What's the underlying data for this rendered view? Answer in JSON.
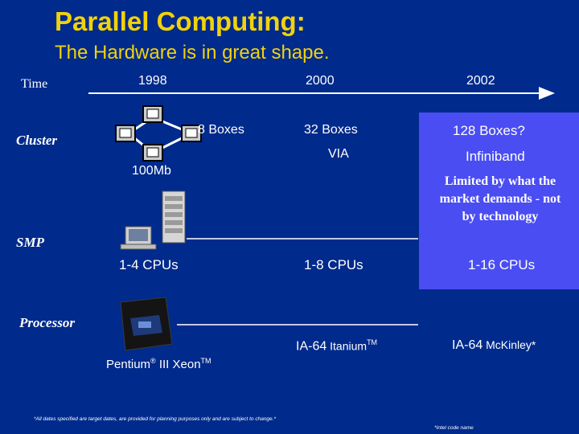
{
  "slide": {
    "title": "Parallel Computing:",
    "subtitle": "The Hardware is in great shape."
  },
  "timeline": {
    "label": "Time",
    "years": [
      "1998",
      "2000",
      "2002"
    ]
  },
  "rows": {
    "cluster": "Cluster",
    "smp": "SMP",
    "processor": "Processor"
  },
  "cluster": {
    "network_1998": "100Mb",
    "boxes_1998": "8 Boxes",
    "boxes_2000": "32 Boxes",
    "interconnect_2000": "VIA",
    "boxes_2002": "128 Boxes?",
    "interconnect_2002": "Infiniband"
  },
  "smp": {
    "note_2002": "Limited by what the market demands - not by technology",
    "cpus_1998": "1-4 CPUs",
    "cpus_2000": "1-8 CPUs",
    "cpus_2002": "1-16 CPUs"
  },
  "processor": {
    "chip_1998_name": "Pentium",
    "chip_1998_reg": "®",
    "chip_1998_rest": " III Xeon",
    "chip_1998_tm": "TM",
    "chip_2000_a": "IA-64",
    "chip_2000_b": " Itanium",
    "chip_2000_tm": "TM",
    "chip_2002_a": "IA-64",
    "chip_2002_b": " McKinley*"
  },
  "footnotes": {
    "disclaimer": "*All dates specified are target dates, are provided for planning purposes only and are subject to change.*",
    "codename": "*Intel code name"
  },
  "colors": {
    "background": "#002a8c",
    "title": "#f2d20a",
    "highlight": "#4a4df2"
  }
}
